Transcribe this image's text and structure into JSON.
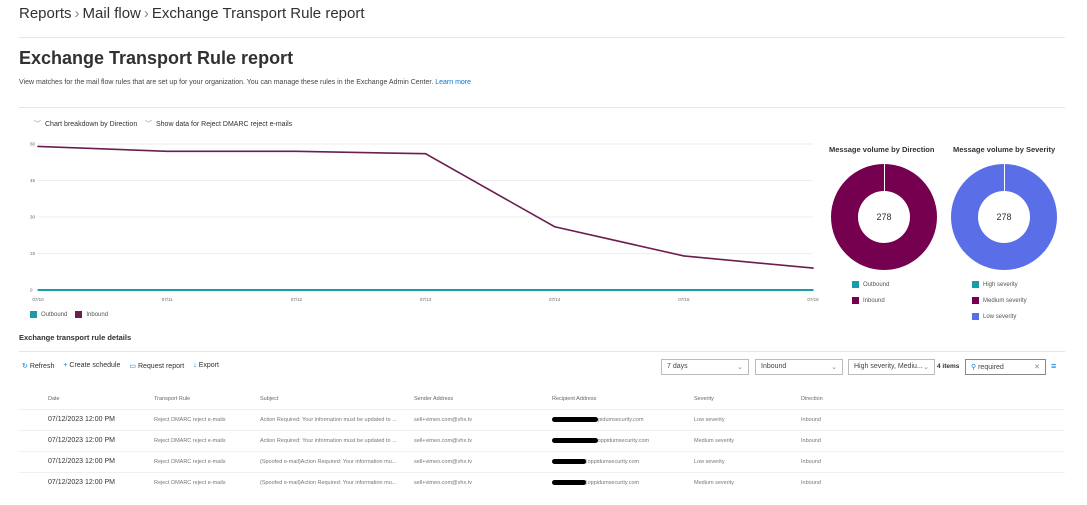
{
  "breadcrumb": [
    "Reports",
    "Mail flow",
    "Exchange Transport Rule report"
  ],
  "page_title": "Exchange Transport Rule report",
  "description": "View matches for the mail flow rules that are set up for your organization. You can manage these rules in the Exchange Admin Center.",
  "learn_more": "Learn more",
  "toggles": [
    "Chart breakdown by Direction",
    "Show data for Reject DMARC reject e-mails"
  ],
  "chart_data": {
    "type": "line",
    "x": [
      "07/10",
      "07/11",
      "07/12",
      "07/13",
      "07/14",
      "07/15",
      "07/16"
    ],
    "yticks": [
      0,
      15,
      30,
      45,
      60
    ],
    "ylim": [
      0,
      60
    ],
    "series": [
      {
        "name": "Outbound",
        "color": "#1a9ba8",
        "values": [
          0,
          0,
          0,
          0,
          0,
          0,
          0
        ]
      },
      {
        "name": "Inbound",
        "color": "#6b1e4f",
        "values": [
          59,
          57,
          57,
          56,
          26,
          14,
          9
        ]
      }
    ],
    "legend": "bottom-left"
  },
  "donut_direction": {
    "title": "Message volume by Direction",
    "total": "278",
    "legend": [
      {
        "label": "Outbound",
        "color": "#1a9ba8"
      },
      {
        "label": "Inbound",
        "color": "#750050"
      }
    ],
    "fill": "#750050"
  },
  "donut_severity": {
    "title": "Message volume by Severity",
    "total": "278",
    "legend": [
      {
        "label": "High severity",
        "color": "#1a9ba8"
      },
      {
        "label": "Medium severity",
        "color": "#750050"
      },
      {
        "label": "Low severity",
        "color": "#5a6ee8"
      }
    ],
    "fill": "#5a6ee8"
  },
  "details_title": "Exchange transport rule details",
  "toolbar": {
    "refresh": "Refresh",
    "create_schedule": "Create schedule",
    "request_report": "Request report",
    "export": "Export"
  },
  "filters": {
    "period": "7 days",
    "direction": "Inbound",
    "severity": "High severity, Mediu...",
    "count": "4 items",
    "search": "required"
  },
  "columns": [
    "Date",
    "Transport Rule",
    "Subject",
    "Sender Address",
    "Recipient Address",
    "Severity",
    "Direction"
  ],
  "rows": [
    {
      "date": "07/12/2023 12:00 PM",
      "rule": "Reject DMARC reject e-mails",
      "subject": "Action Required: Your information must be updated to ...",
      "sender": "sell+vimeo.com@vhx.tv",
      "recipient": "oppidumsecurity.com",
      "severity": "Low severity",
      "direction": "Inbound"
    },
    {
      "date": "07/12/2023 12:00 PM",
      "rule": "Reject DMARC reject e-mails",
      "subject": "Action Required: Your information must be updated to ...",
      "sender": "sell+vimeo.com@vhx.tv",
      "recipient": "@oppidumsecurity.com",
      "severity": "Medium severity",
      "direction": "Inbound"
    },
    {
      "date": "07/12/2023 12:00 PM",
      "rule": "Reject DMARC reject e-mails",
      "subject": "(Spoofed e-mail)Action Required: Your information mu...",
      "sender": "sell+vimeo.com@vhx.tv",
      "recipient": "@oppidumsecurity.com",
      "severity": "Low severity",
      "direction": "Inbound"
    },
    {
      "date": "07/12/2023 12:00 PM",
      "rule": "Reject DMARC reject e-mails",
      "subject": "(Spoofed e-mail)Action Required: Your information mu...",
      "sender": "sell+vimeo.com@vhx.tv",
      "recipient": "@oppidumsecurity.com",
      "severity": "Medium severity",
      "direction": "Inbound"
    }
  ]
}
